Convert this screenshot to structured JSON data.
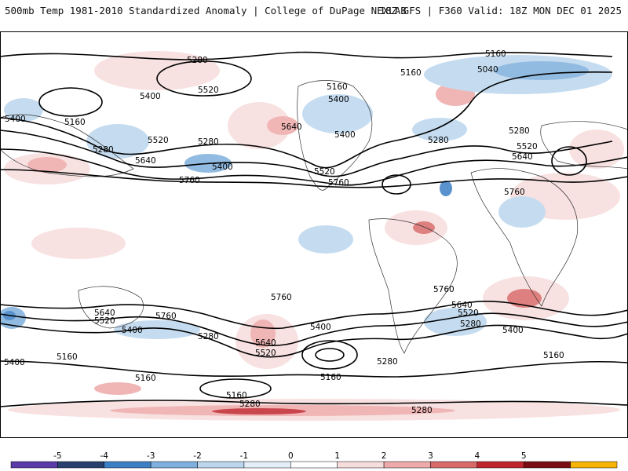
{
  "header": {
    "title": "500mb Temp 1981-2010 Standardized Anomaly | College of DuPage NEXLAB",
    "run_info": "18Z GFS | F360 Valid: 18Z MON DEC 01 2025"
  },
  "contour_labels": [
    {
      "id": "c1",
      "text": "5280"
    },
    {
      "id": "c2",
      "text": "5160"
    },
    {
      "id": "c3",
      "text": "5160"
    },
    {
      "id": "c4",
      "text": "5040"
    },
    {
      "id": "c5",
      "text": "5520"
    },
    {
      "id": "c6",
      "text": "5400"
    },
    {
      "id": "c7",
      "text": "5160"
    },
    {
      "id": "c8",
      "text": "5400"
    },
    {
      "id": "c9",
      "text": "5160"
    },
    {
      "id": "c10",
      "text": "5280"
    },
    {
      "id": "c11",
      "text": "5520"
    },
    {
      "id": "c12",
      "text": "5280"
    },
    {
      "id": "c13",
      "text": "5640"
    },
    {
      "id": "c14",
      "text": "5400"
    },
    {
      "id": "c15",
      "text": "5640"
    },
    {
      "id": "c16",
      "text": "5400"
    },
    {
      "id": "c17",
      "text": "5280"
    },
    {
      "id": "c18",
      "text": "5760"
    },
    {
      "id": "c19",
      "text": "5520"
    },
    {
      "id": "c20",
      "text": "5760"
    },
    {
      "id": "c21",
      "text": "5280"
    },
    {
      "id": "c22",
      "text": "5400"
    },
    {
      "id": "c23",
      "text": "5520"
    },
    {
      "id": "c24",
      "text": "5640"
    },
    {
      "id": "c25",
      "text": "5760"
    },
    {
      "id": "c26",
      "text": "5760"
    },
    {
      "id": "c27",
      "text": "5640"
    },
    {
      "id": "c28",
      "text": "5520"
    },
    {
      "id": "c29",
      "text": "5400"
    },
    {
      "id": "c30",
      "text": "5760"
    },
    {
      "id": "c31",
      "text": "5400"
    },
    {
      "id": "c32",
      "text": "5280"
    },
    {
      "id": "c33",
      "text": "5640"
    },
    {
      "id": "c34",
      "text": "5520"
    },
    {
      "id": "c35",
      "text": "5400"
    },
    {
      "id": "c36",
      "text": "5160"
    },
    {
      "id": "c37",
      "text": "5160"
    },
    {
      "id": "c38",
      "text": "5160"
    },
    {
      "id": "c39",
      "text": "5280"
    },
    {
      "id": "c40",
      "text": "5760"
    },
    {
      "id": "c41",
      "text": "5640"
    },
    {
      "id": "c42",
      "text": "5520"
    },
    {
      "id": "c43",
      "text": "5280"
    },
    {
      "id": "c44",
      "text": "5400"
    },
    {
      "id": "c45",
      "text": "5160"
    },
    {
      "id": "c46",
      "text": "5160"
    },
    {
      "id": "c47",
      "text": "5280"
    },
    {
      "id": "c48",
      "text": "5280"
    }
  ],
  "legend": {
    "ticks": [
      "-5",
      "-4",
      "-3",
      "-2",
      "-1",
      "0",
      "1",
      "2",
      "3",
      "4",
      "5"
    ],
    "colors": [
      "#5a3aa8",
      "#27406e",
      "#3d7fc4",
      "#7fb0de",
      "#bcd6ee",
      "#e4eef8",
      "#ffffff",
      "#f7dcdc",
      "#eeaaaa",
      "#d96a6a",
      "#c0272d",
      "#7a0e12",
      "#f6b400"
    ]
  }
}
